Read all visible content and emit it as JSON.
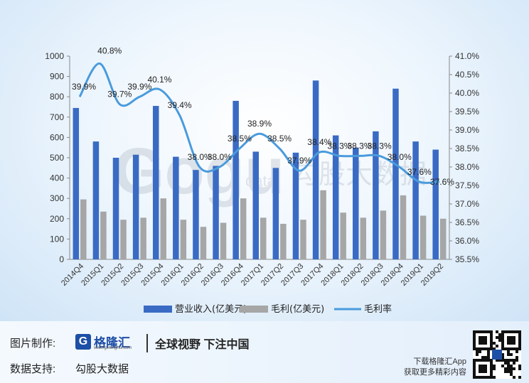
{
  "chart_data": {
    "type": "bar",
    "categories": [
      "2014Q4",
      "2015Q1",
      "2015Q2",
      "2015Q3",
      "2015Q4",
      "2016Q1",
      "2016Q2",
      "2016Q3",
      "2016Q4",
      "2017Q1",
      "2017Q2",
      "2017Q3",
      "2017Q4",
      "2018Q1",
      "2018Q2",
      "2018Q3",
      "2018Q4",
      "2019Q1",
      "2019Q2"
    ],
    "series": [
      {
        "name": "营业收入(亿美元)",
        "kind": "bar",
        "axis": "left",
        "color": "#3a6bc4",
        "values": [
          745,
          580,
          500,
          515,
          755,
          505,
          440,
          460,
          780,
          530,
          450,
          525,
          880,
          610,
          550,
          630,
          840,
          580,
          540
        ]
      },
      {
        "name": "毛利(亿美元)",
        "kind": "bar",
        "axis": "left",
        "color": "#a6a6a6",
        "values": [
          295,
          235,
          195,
          205,
          300,
          195,
          160,
          180,
          300,
          205,
          175,
          195,
          340,
          230,
          205,
          240,
          315,
          215,
          200
        ]
      },
      {
        "name": "毛利率",
        "kind": "line",
        "axis": "right",
        "color": "#4a9bdc",
        "values": [
          39.9,
          40.8,
          39.7,
          39.9,
          40.1,
          39.4,
          38.0,
          38.0,
          38.5,
          38.9,
          38.5,
          37.9,
          38.4,
          38.3,
          38.3,
          38.3,
          38.0,
          37.6,
          37.6
        ],
        "labels": [
          "39.9%",
          "40.8%",
          "39.7%",
          "39.9%",
          "40.1%",
          "39.4%",
          "38.0%",
          "38.0%",
          "38.5%",
          "38.9%",
          "38.5%",
          "37.9%",
          "38.4%",
          "38.3%",
          "38.3%",
          "38.3%",
          "38.0%",
          "37.6%",
          "37.6%"
        ]
      }
    ],
    "y_left": {
      "range": [
        0,
        1000
      ],
      "ticks": [
        "0",
        "100",
        "200",
        "300",
        "400",
        "500",
        "600",
        "700",
        "800",
        "900",
        "1000"
      ]
    },
    "y_right": {
      "range": [
        35.5,
        41.0
      ],
      "ticks": [
        "35.5%",
        "36.0%",
        "36.5%",
        "37.0%",
        "37.5%",
        "38.0%",
        "38.5%",
        "39.0%",
        "39.5%",
        "40.0%",
        "40.5%",
        "41.0%"
      ]
    },
    "legend_position": "bottom",
    "grid": false
  },
  "watermark": {
    "logo_text": "Gogu",
    "sub_text": "data",
    "cn_text": "勾股大数据"
  },
  "footer": {
    "made_by_label": "图片制作:",
    "brand_icon": "G",
    "brand_name": "格隆汇",
    "brand_url": "www.gelonghui.com",
    "slogan": "全球视野 下注中国",
    "data_label": "数据支持:",
    "data_source": "勾股大数据",
    "app_line1": "下载格隆汇App",
    "app_line2": "获取更多精彩内容",
    "qr_icon": "qr-code-icon"
  }
}
